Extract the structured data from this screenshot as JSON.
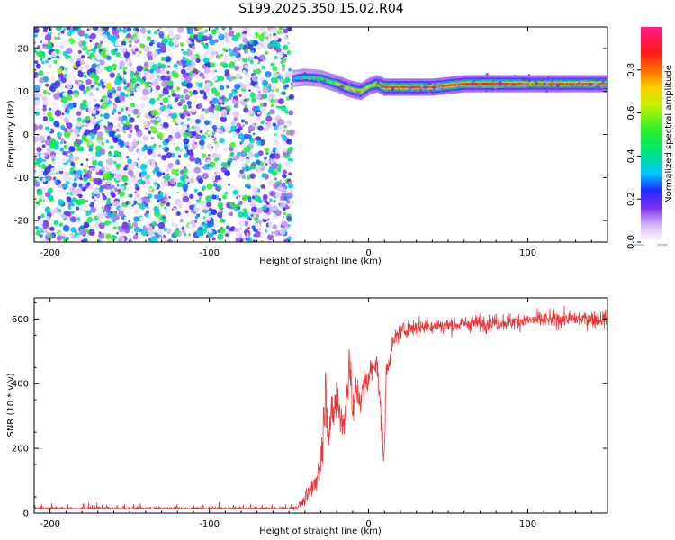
{
  "figure": {
    "title": "S199.2025.350.15.02.R04"
  },
  "chart_data": [
    {
      "id": "spectrogram",
      "type": "heatmap",
      "xlabel": "Height of straight line (km)",
      "ylabel": "Frequency (Hz)",
      "xlim": [
        -210,
        150
      ],
      "ylim": [
        -25,
        25
      ],
      "xticks": [
        -200,
        -100,
        0,
        100
      ],
      "yticks": [
        -20,
        -10,
        0,
        10,
        20
      ],
      "noise_region_x": [
        -210,
        -48
      ],
      "carrier_track": {
        "x": [
          -48,
          -40,
          -30,
          -25,
          -20,
          -15,
          -10,
          -5,
          0,
          5,
          10,
          20,
          40,
          60,
          80,
          90,
          100,
          120,
          150
        ],
        "frequency": [
          13,
          13.3,
          13,
          12.3,
          11.8,
          11,
          10.4,
          10,
          11.2,
          11.8,
          11,
          11,
          11,
          11.8,
          11.8,
          11.8,
          11.8,
          11.8,
          11.8
        ],
        "peak_amplitude": [
          0.35,
          0.5,
          0.55,
          0.6,
          0.7,
          0.8,
          0.75,
          0.8,
          0.7,
          0.85,
          0.95,
          0.95,
          0.95,
          0.95,
          1.0,
          0.95,
          0.9,
          0.9,
          0.9
        ]
      },
      "colorbar": {
        "label": "Normalized spectral amplitude",
        "range": [
          0,
          1
        ],
        "ticks": [
          0.0,
          0.2,
          0.4,
          0.6,
          0.8
        ],
        "tick_labels": [
          "0.0",
          "0.2",
          "0.4",
          "0.6",
          "0.8"
        ]
      }
    },
    {
      "id": "snr",
      "type": "line",
      "xlabel": "Height of straight line (km)",
      "ylabel": "SNR (10 * v/v)",
      "xlim": [
        -210,
        150
      ],
      "ylim": [
        0,
        665
      ],
      "xticks": [
        -200,
        -100,
        0,
        100
      ],
      "yticks": [
        0,
        200,
        400,
        600
      ],
      "color": "#ee3333",
      "series": [
        {
          "name": "SNR",
          "x": [
            -210,
            -50,
            -45,
            -40,
            -35,
            -30,
            -27,
            -25,
            -20,
            -15,
            -12,
            -10,
            -8,
            -5,
            -3,
            0,
            5,
            8,
            10,
            11,
            12,
            15,
            18,
            20,
            25,
            30,
            40,
            50,
            60,
            80,
            100,
            120,
            150
          ],
          "y": [
            15,
            15,
            18,
            40,
            80,
            150,
            380,
            250,
            350,
            270,
            500,
            300,
            380,
            350,
            390,
            420,
            480,
            280,
            160,
            440,
            450,
            520,
            550,
            560,
            570,
            575,
            580,
            580,
            585,
            590,
            595,
            600,
            600
          ],
          "noise": [
            8,
            8,
            10,
            30,
            60,
            90,
            140,
            120,
            130,
            110,
            140,
            100,
            90,
            80,
            70,
            60,
            60,
            80,
            100,
            60,
            50,
            40,
            40,
            40,
            40,
            40,
            40,
            40,
            40,
            40,
            40,
            40,
            40
          ]
        }
      ]
    }
  ]
}
